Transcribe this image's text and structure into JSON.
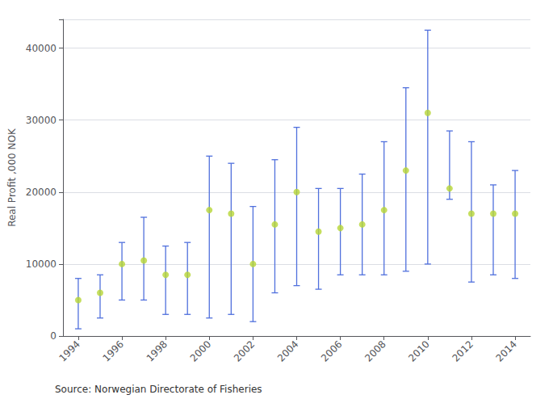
{
  "chart_data": {
    "type": "scatter",
    "x": [
      1994,
      1995,
      1996,
      1997,
      1998,
      1999,
      2000,
      2001,
      2002,
      2003,
      2004,
      2005,
      2006,
      2007,
      2008,
      2009,
      2010,
      2011,
      2012,
      2013,
      2014
    ],
    "values": [
      5000,
      6000,
      10000,
      10500,
      8500,
      8500,
      17500,
      17000,
      10000,
      15500,
      20000,
      14500,
      15000,
      15500,
      17500,
      23000,
      31000,
      20500,
      17000,
      17000,
      17000
    ],
    "upper": [
      8000,
      8500,
      13000,
      16500,
      12500,
      13000,
      25000,
      24000,
      18000,
      24500,
      29000,
      20500,
      20500,
      22500,
      27000,
      34500,
      42500,
      28500,
      27000,
      21000,
      23000
    ],
    "lower": [
      1000,
      2500,
      5000,
      5000,
      3000,
      3000,
      2500,
      3000,
      2000,
      6000,
      7000,
      6500,
      8500,
      8500,
      8500,
      9000,
      10000,
      19000,
      7500,
      8500,
      8000
    ],
    "ylabel": "Real Profit ,000 NOK",
    "annotation": "Source: Norwegian Directorate of Fisheries",
    "xlim": [
      1993.3,
      2014.7
    ],
    "xticks": [
      1994,
      1996,
      1998,
      2000,
      2002,
      2004,
      2006,
      2008,
      2010,
      2012,
      2014
    ],
    "ylim": [
      0,
      44000
    ],
    "yticks": [
      0,
      10000,
      20000,
      30000,
      40000
    ],
    "grid": true
  }
}
